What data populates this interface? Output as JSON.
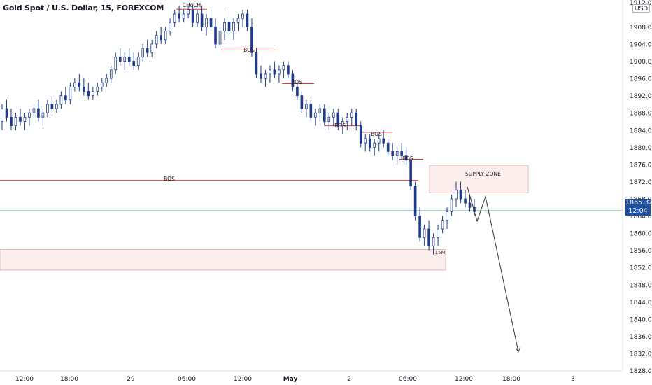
{
  "header": {
    "title": "Gold Spot / U.S. Dollar, 15, FOREXCOM",
    "currency": "USD"
  },
  "last_price": {
    "value": "1865.32",
    "countdown": "12:04"
  },
  "colors": {
    "up": "#ffffff",
    "down": "#1e3a8a",
    "wick": "#1e3a8a",
    "level_line": "#e53935",
    "zone_fill": "#fdeeee",
    "zone_border": "#e2b5b5",
    "price_line": "#9fd8d5",
    "projection": "#333333"
  },
  "chart_data": {
    "type": "candlestick",
    "title": "Gold Spot / U.S. Dollar, 15, FOREXCOM",
    "y_axis": {
      "min": 1828,
      "max": 1912,
      "ticks": [
        1908.0,
        1904.0,
        1900.0,
        1896.0,
        1892.0,
        1888.0,
        1884.0,
        1880.0,
        1876.0,
        1872.0,
        1868.0,
        1864.0,
        1860.0,
        1856.0,
        1852.0,
        1848.0,
        1844.0,
        1840.0,
        1836.0,
        1832.0,
        1828.0
      ],
      "tick_labels": [
        "1908.00",
        "1904.00",
        "1900.00",
        "1896.00",
        "1892.00",
        "1888.00",
        "1884.00",
        "1880.00",
        "1876.00",
        "1872.00",
        "1868.00",
        "1864.00",
        "1860.00",
        "1856.00",
        "1852.00",
        "1848.00",
        "1844.00",
        "1840.00",
        "1836.00",
        "1832.00",
        "1828.00"
      ],
      "top_label": "1912.00"
    },
    "x_axis": {
      "ticks": [
        {
          "label": "12:00",
          "index": 8
        },
        {
          "label": "18:00",
          "index": 24
        },
        {
          "label": "29",
          "index": 46
        },
        {
          "label": "06:00",
          "index": 66
        },
        {
          "label": "12:00",
          "index": 86
        },
        {
          "label": "May",
          "index": 103
        },
        {
          "label": "2",
          "index": 124
        },
        {
          "label": "06:00",
          "index": 145
        },
        {
          "label": "12:00",
          "index": 165
        },
        {
          "label": "18:00",
          "index": 182
        },
        {
          "label": "3",
          "index": 204
        }
      ]
    },
    "candles": [
      [
        1886,
        1890,
        1884,
        1889
      ],
      [
        1889,
        1891,
        1886,
        1887
      ],
      [
        1887,
        1889,
        1884,
        1885
      ],
      [
        1885,
        1888,
        1884,
        1887
      ],
      [
        1887,
        1889,
        1885,
        1886
      ],
      [
        1886,
        1888,
        1884,
        1887
      ],
      [
        1887,
        1889,
        1885,
        1888
      ],
      [
        1888,
        1890,
        1887,
        1889
      ],
      [
        1889,
        1891,
        1886,
        1887
      ],
      [
        1887,
        1889,
        1885,
        1888
      ],
      [
        1888,
        1891,
        1887,
        1890
      ],
      [
        1890,
        1892,
        1888,
        1889
      ],
      [
        1889,
        1891,
        1888,
        1890
      ],
      [
        1890,
        1893,
        1889,
        1892
      ],
      [
        1892,
        1894,
        1890,
        1891
      ],
      [
        1891,
        1895,
        1890,
        1894
      ],
      [
        1894,
        1896,
        1893,
        1895
      ],
      [
        1895,
        1897,
        1893,
        1894
      ],
      [
        1894,
        1896,
        1892,
        1893
      ],
      [
        1893,
        1895,
        1891,
        1892
      ],
      [
        1892,
        1894,
        1891,
        1893
      ],
      [
        1893,
        1895,
        1892,
        1894
      ],
      [
        1894,
        1896,
        1893,
        1895
      ],
      [
        1895,
        1897,
        1894,
        1896
      ],
      [
        1896,
        1899,
        1895,
        1898
      ],
      [
        1898,
        1902,
        1897,
        1901
      ],
      [
        1901,
        1903,
        1899,
        1900
      ],
      [
        1900,
        1902,
        1898,
        1901
      ],
      [
        1901,
        1903,
        1899,
        1900
      ],
      [
        1900,
        1902,
        1898,
        1899
      ],
      [
        1899,
        1902,
        1898,
        1901
      ],
      [
        1901,
        1904,
        1900,
        1903
      ],
      [
        1903,
        1905,
        1901,
        1902
      ],
      [
        1902,
        1905,
        1901,
        1904
      ],
      [
        1904,
        1907,
        1903,
        1906
      ],
      [
        1906,
        1908,
        1904,
        1905
      ],
      [
        1905,
        1908,
        1904,
        1907
      ],
      [
        1907,
        1910,
        1906,
        1909
      ],
      [
        1909,
        1912,
        1908,
        1911
      ],
      [
        1911,
        1913,
        1909,
        1910
      ],
      [
        1910,
        1912,
        1909,
        1911
      ],
      [
        1911,
        1913,
        1910,
        1912
      ],
      [
        1912,
        1913,
        1908,
        1909
      ],
      [
        1909,
        1912,
        1908,
        1911
      ],
      [
        1911,
        1913,
        1907,
        1908
      ],
      [
        1908,
        1911,
        1906,
        1910
      ],
      [
        1910,
        1912,
        1907,
        1908
      ],
      [
        1908,
        1910,
        1903,
        1904
      ],
      [
        1904,
        1908,
        1903,
        1907
      ],
      [
        1907,
        1910,
        1905,
        1909
      ],
      [
        1909,
        1912,
        1906,
        1907
      ],
      [
        1907,
        1910,
        1905,
        1909
      ],
      [
        1909,
        1911,
        1907,
        1910
      ],
      [
        1910,
        1912,
        1908,
        1911
      ],
      [
        1911,
        1912,
        1907,
        1908
      ],
      [
        1908,
        1910,
        1901,
        1902
      ],
      [
        1902,
        1903,
        1896,
        1897
      ],
      [
        1897,
        1899,
        1895,
        1896
      ],
      [
        1896,
        1898,
        1894,
        1897
      ],
      [
        1897,
        1899,
        1895,
        1898
      ],
      [
        1898,
        1900,
        1896,
        1897
      ],
      [
        1897,
        1899,
        1895,
        1898
      ],
      [
        1898,
        1900,
        1896,
        1899
      ],
      [
        1899,
        1900,
        1896,
        1897
      ],
      [
        1897,
        1898,
        1893,
        1894
      ],
      [
        1894,
        1895,
        1891,
        1892
      ],
      [
        1892,
        1893,
        1888,
        1889
      ],
      [
        1889,
        1891,
        1887,
        1890
      ],
      [
        1890,
        1891,
        1886,
        1887
      ],
      [
        1887,
        1889,
        1885,
        1888
      ],
      [
        1888,
        1890,
        1886,
        1889
      ],
      [
        1889,
        1890,
        1885,
        1886
      ],
      [
        1886,
        1888,
        1884,
        1887
      ],
      [
        1887,
        1889,
        1885,
        1888
      ],
      [
        1888,
        1889,
        1884,
        1885
      ],
      [
        1885,
        1887,
        1883,
        1886
      ],
      [
        1886,
        1888,
        1884,
        1887
      ],
      [
        1887,
        1889,
        1885,
        1888
      ],
      [
        1888,
        1889,
        1884,
        1885
      ],
      [
        1885,
        1886,
        1880,
        1881
      ],
      [
        1881,
        1883,
        1879,
        1882
      ],
      [
        1882,
        1883,
        1879,
        1880
      ],
      [
        1880,
        1882,
        1878,
        1881
      ],
      [
        1881,
        1883,
        1879,
        1882
      ],
      [
        1882,
        1884,
        1880,
        1881
      ],
      [
        1881,
        1882,
        1878,
        1879
      ],
      [
        1879,
        1881,
        1877,
        1878
      ],
      [
        1878,
        1880,
        1876,
        1879
      ],
      [
        1879,
        1881,
        1877,
        1878
      ],
      [
        1878,
        1880,
        1876,
        1877
      ],
      [
        1877,
        1878,
        1870,
        1871
      ],
      [
        1871,
        1872,
        1863,
        1864
      ],
      [
        1864,
        1866,
        1858,
        1859
      ],
      [
        1859,
        1862,
        1857,
        1861
      ],
      [
        1861,
        1863,
        1856,
        1857
      ],
      [
        1857,
        1860,
        1855,
        1859
      ],
      [
        1859,
        1862,
        1857,
        1861
      ],
      [
        1861,
        1864,
        1860,
        1863
      ],
      [
        1863,
        1866,
        1861,
        1865
      ],
      [
        1865,
        1869,
        1864,
        1868
      ],
      [
        1868,
        1872,
        1866,
        1870
      ],
      [
        1870,
        1872,
        1867,
        1868
      ],
      [
        1868,
        1870,
        1866,
        1867
      ],
      [
        1867,
        1869,
        1865,
        1866
      ],
      [
        1866,
        1868,
        1864,
        1865
      ]
    ],
    "annotations": {
      "bos_labels": [
        "CHoCH",
        "BOS",
        "BOS",
        "BOS",
        "BOS",
        "BOS",
        "BOS"
      ],
      "zone_labels": [
        "SUPPLY ZONE",
        "15M"
      ]
    }
  }
}
